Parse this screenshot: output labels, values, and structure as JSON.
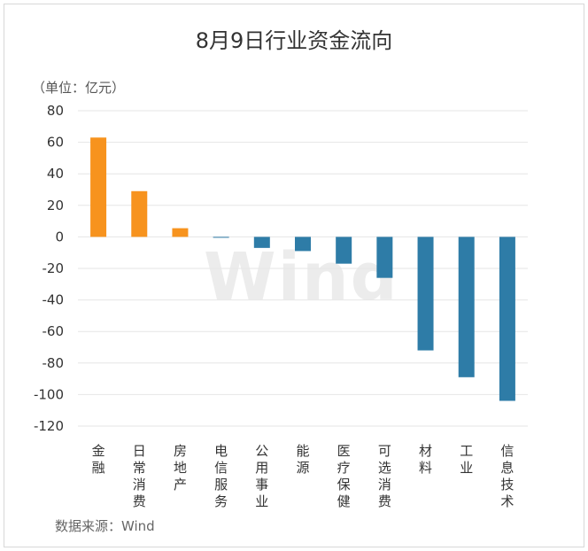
{
  "chart_data": {
    "type": "bar",
    "title": "8月9日行业资金流向",
    "unit_label": "（单位：亿元）",
    "source": "数据来源：Wind",
    "watermark": "Wind",
    "categories": [
      "金融",
      "日常消费",
      "房地产",
      "电信服务",
      "公用事业",
      "能源",
      "医疗保健",
      "可选消费",
      "材料",
      "工业",
      "信息技术"
    ],
    "values": [
      63,
      29,
      5.5,
      -0.5,
      -7,
      -9,
      -17,
      -26,
      -72,
      -89,
      -104
    ],
    "ylim": [
      -120,
      80
    ],
    "yticks": [
      80,
      60,
      40,
      20,
      0,
      -20,
      -40,
      -60,
      -80,
      -100,
      -120
    ],
    "colors": {
      "positive": "#f7931e",
      "negative": "#2e7ca7"
    },
    "grid": true
  }
}
